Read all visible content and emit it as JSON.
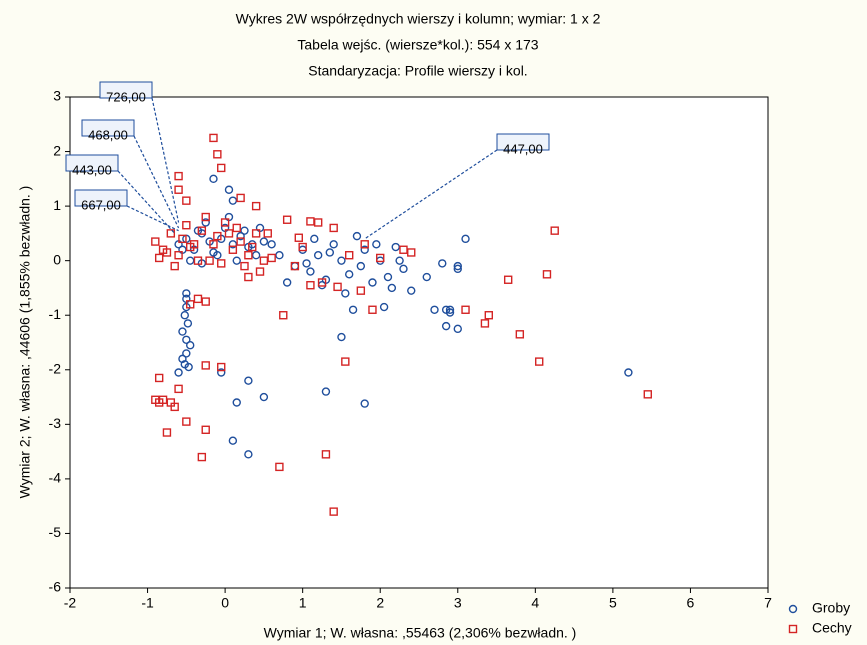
{
  "chart_data": {
    "type": "scatter",
    "title": "Wykres 2W współrzędnych wierszy i kolumn; wymiar:  1 x  2",
    "subtitle": [
      "Tabela wejśc. (wiersze*kol.): 554 x 173",
      "Standaryzacja:   Profile wierszy i kol."
    ],
    "x_label": "Wymiar    1; W. własna:   ,55463 (2,306% bezwładn. )",
    "y_label": "Wymiar    2; W. własna:   ,44606 (1,855% bezwładn. )",
    "xlim": [
      -2,
      7
    ],
    "xticks": [
      -2,
      -1,
      0,
      1,
      2,
      3,
      4,
      5,
      6,
      7
    ],
    "ylim": [
      -6,
      3
    ],
    "yticks": [
      -6,
      -5,
      -4,
      -3,
      -2,
      -1,
      0,
      1,
      2,
      3
    ],
    "legend": "lower right",
    "series": [
      {
        "name": "Groby",
        "color": "#1f4e9c",
        "marker": "circle",
        "x": [
          -0.6,
          -0.5,
          -0.4,
          -0.3,
          -0.2,
          -0.1,
          0,
          0.1,
          0.2,
          0.3,
          0.4,
          0.5,
          -0.45,
          -0.35,
          -0.25,
          -0.15,
          -0.05,
          0.05,
          0.15,
          0.25,
          0.35,
          -0.55,
          -0.3,
          0.1,
          0.45,
          0.6,
          0.7,
          0.9,
          1.0,
          1.1,
          1.2,
          1.3,
          1.4,
          1.5,
          1.6,
          1.7,
          1.8,
          1.9,
          2.0,
          2.1,
          2.2,
          2.3,
          2.4,
          0.8,
          1.05,
          1.35,
          1.55,
          1.75,
          1.95,
          2.15,
          2.25,
          2.05,
          1.65,
          1.25,
          2.6,
          2.7,
          2.8,
          2.9,
          3.0,
          3.1,
          2.85,
          3.0,
          2.9,
          1.5,
          -0.15,
          0.05,
          -0.5,
          -0.5,
          -0.52,
          -0.48,
          -0.55,
          -0.5,
          -0.45,
          -0.5,
          -0.55,
          -0.52,
          -0.47,
          -0.6,
          -0.5,
          -0.05,
          0.15,
          0.3,
          0.5,
          0.1,
          0.3,
          1.3,
          1.8,
          5.2,
          2.85,
          3.0,
          1.15
        ],
        "y": [
          0.3,
          0.4,
          0.2,
          0.5,
          0.35,
          0.1,
          0.6,
          0.3,
          0.45,
          0.25,
          0.1,
          0.35,
          0.0,
          0.55,
          0.7,
          0.15,
          0.4,
          0.8,
          0.0,
          0.55,
          0.3,
          0.2,
          -0.05,
          1.1,
          0.6,
          0.3,
          0.1,
          -0.1,
          0.2,
          -0.2,
          0.1,
          -0.35,
          0.3,
          0.0,
          -0.25,
          0.45,
          0.2,
          -0.4,
          0.0,
          -0.3,
          0.25,
          -0.15,
          -0.55,
          -0.4,
          -0.05,
          0.15,
          -0.6,
          -0.1,
          0.3,
          -0.5,
          0.0,
          -0.85,
          -0.9,
          -0.45,
          -0.3,
          -0.9,
          -0.05,
          -0.9,
          -0.1,
          0.4,
          -1.2,
          -1.25,
          -0.95,
          -1.4,
          1.5,
          1.3,
          -0.7,
          -0.85,
          -1.0,
          -1.15,
          -1.3,
          -1.45,
          -1.55,
          -1.7,
          -1.8,
          -1.9,
          -1.95,
          -2.05,
          -0.6,
          -2.05,
          -2.6,
          -2.2,
          -2.5,
          -3.3,
          -3.55,
          -2.4,
          -2.62,
          -2.05,
          -0.9,
          -0.15,
          0.4
        ]
      },
      {
        "name": "Cechy",
        "color": "#d42424",
        "marker": "square",
        "x": [
          -0.9,
          -0.8,
          -0.7,
          -0.6,
          -0.5,
          -0.4,
          -0.3,
          -0.2,
          -0.1,
          0,
          0.1,
          0.2,
          0.3,
          0.4,
          0.5,
          -0.85,
          -0.65,
          -0.45,
          -0.25,
          -0.05,
          0.15,
          0.35,
          -0.75,
          -0.55,
          -0.35,
          -0.15,
          0.05,
          0.25,
          -0.15,
          -0.1,
          -0.05,
          -0.6,
          -0.6,
          -0.5,
          0.2,
          0.4,
          0.8,
          1.1,
          1.2,
          0.95,
          0.55,
          0.6,
          1.0,
          1.4,
          1.6,
          1.8,
          2.0,
          2.4,
          2.3,
          1.1,
          1.45,
          1.75,
          1.9,
          0.75,
          3.1,
          4.25,
          4.15,
          3.65,
          3.4,
          3.35,
          3.8,
          4.05,
          5.45,
          1.55,
          1.3,
          1.4,
          0.7,
          -0.3,
          -0.25,
          -0.75,
          -0.5,
          -0.9,
          -0.85,
          -0.8,
          -0.7,
          -0.65,
          -0.85,
          -0.6,
          -0.25,
          -0.05,
          -0.25,
          -0.35,
          -0.45,
          0.3,
          0.45,
          1.25,
          0.9
        ],
        "y": [
          0.35,
          0.2,
          0.5,
          0.1,
          0.65,
          0.3,
          0.55,
          0.0,
          0.45,
          0.7,
          0.2,
          0.35,
          0.1,
          0.5,
          0.0,
          0.05,
          -0.1,
          0.25,
          0.8,
          -0.05,
          0.6,
          0.25,
          0.15,
          0.4,
          0.0,
          0.3,
          0.5,
          -0.1,
          2.25,
          1.95,
          1.7,
          1.55,
          1.3,
          1.1,
          1.15,
          1.0,
          0.75,
          0.72,
          0.7,
          0.42,
          0.5,
          0.05,
          0.25,
          0.6,
          0.1,
          0.3,
          0.05,
          0.15,
          0.2,
          -0.45,
          -0.48,
          -0.55,
          -0.9,
          -1.0,
          -0.9,
          0.55,
          -0.25,
          -0.35,
          -1.0,
          -1.15,
          -1.35,
          -1.85,
          -2.45,
          -1.85,
          -3.55,
          -4.6,
          -3.78,
          -3.6,
          -3.1,
          -3.15,
          -2.95,
          -2.55,
          -2.6,
          -2.55,
          -2.6,
          -2.68,
          -2.15,
          -2.35,
          -1.92,
          -1.95,
          -0.75,
          -0.7,
          -0.8,
          -0.3,
          -0.2,
          -0.4,
          -0.1
        ]
      }
    ],
    "annotations": [
      {
        "text": "726,00",
        "x": -0.6,
        "y": 0.7
      },
      {
        "text": "468,00",
        "x": -0.6,
        "y": 0.6
      },
      {
        "text": "443,00",
        "x": -0.65,
        "y": 0.5
      },
      {
        "text": "667,00",
        "x": -0.6,
        "y": 0.55
      },
      {
        "text": "447,00",
        "x": 1.8,
        "y": 0.4
      }
    ]
  }
}
